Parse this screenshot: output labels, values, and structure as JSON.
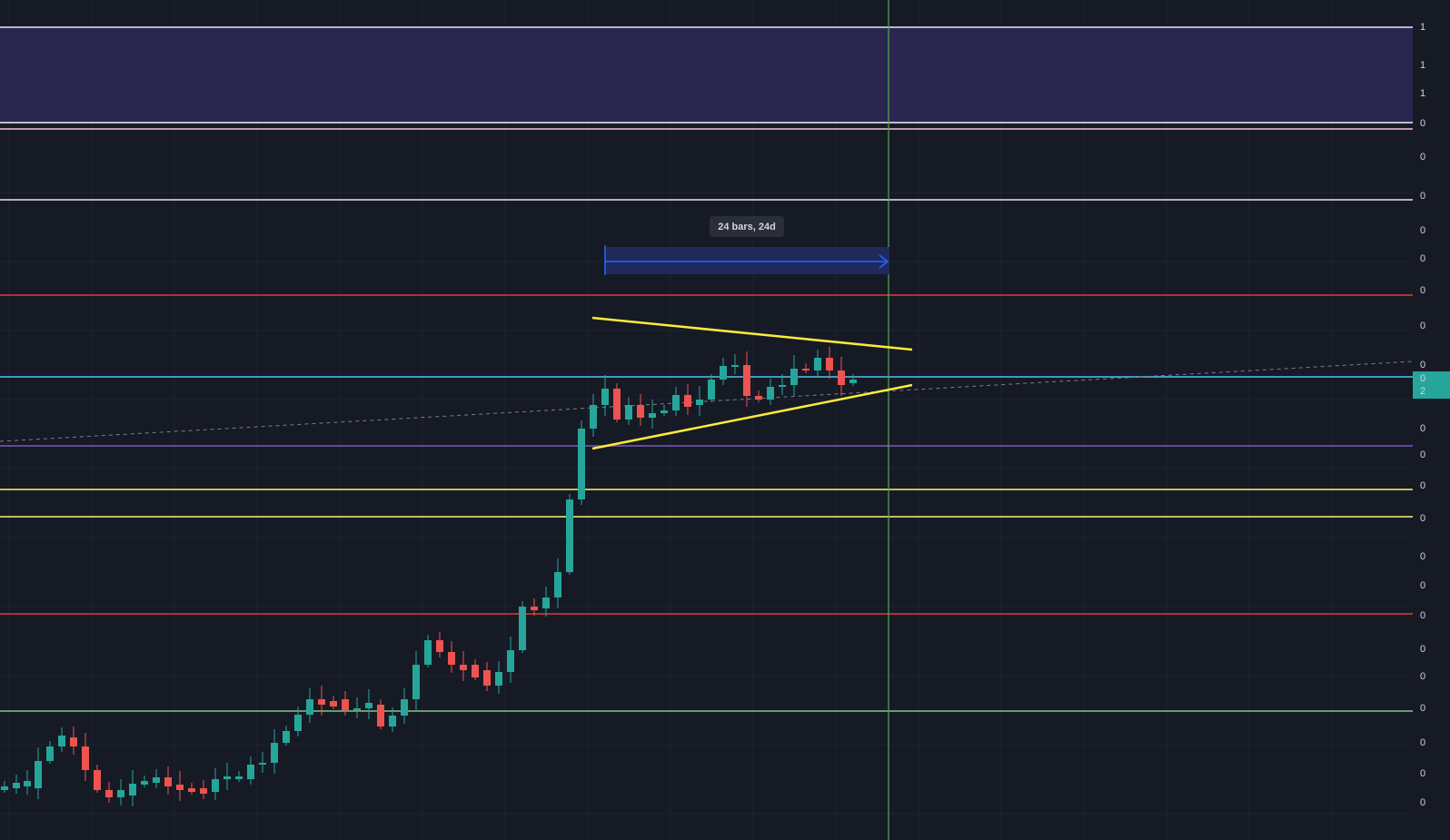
{
  "measure_label": "24 bars, 24d",
  "price_axis_labels": [
    "1",
    "1",
    "1",
    "0",
    "0",
    "0",
    "0",
    "0",
    "0",
    "0",
    "0",
    "0",
    "0",
    "0",
    "0",
    "0",
    "0",
    "0",
    "0",
    "0",
    "0",
    "0",
    "0",
    "0"
  ],
  "price_tag": [
    "0",
    "2"
  ]
}
